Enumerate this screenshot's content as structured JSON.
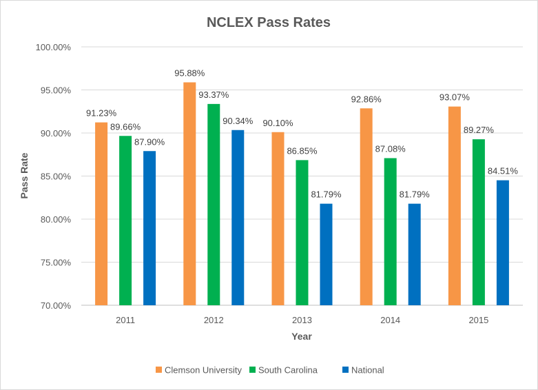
{
  "chart_data": {
    "type": "bar",
    "title": "NCLEX Pass Rates",
    "xlabel": "Year",
    "ylabel": "Pass Rate",
    "categories": [
      "2011",
      "2012",
      "2013",
      "2014",
      "2015"
    ],
    "ylim": [
      70,
      100
    ],
    "yticks": [
      70,
      75,
      80,
      85,
      90,
      95,
      100
    ],
    "ytick_labels": [
      "70.00%",
      "75.00%",
      "80.00%",
      "85.00%",
      "90.00%",
      "95.00%",
      "100.00%"
    ],
    "grid": true,
    "legend_position": "bottom",
    "series": [
      {
        "name": "Clemson University",
        "color": "#F79646",
        "values": [
          91.23,
          95.88,
          90.1,
          92.86,
          93.07
        ],
        "labels": [
          "91.23%",
          "95.88%",
          "90.10%",
          "92.86%",
          "93.07%"
        ]
      },
      {
        "name": "South Carolina",
        "color": "#00B050",
        "values": [
          89.66,
          93.37,
          86.85,
          87.08,
          89.27
        ],
        "labels": [
          "89.66%",
          "93.37%",
          "86.85%",
          "87.08%",
          "89.27%"
        ]
      },
      {
        "name": "National",
        "color": "#0070C0",
        "values": [
          87.9,
          90.34,
          81.79,
          81.79,
          84.51
        ],
        "labels": [
          "87.90%",
          "90.34%",
          "81.79%",
          "81.79%",
          "84.51%"
        ]
      }
    ]
  }
}
